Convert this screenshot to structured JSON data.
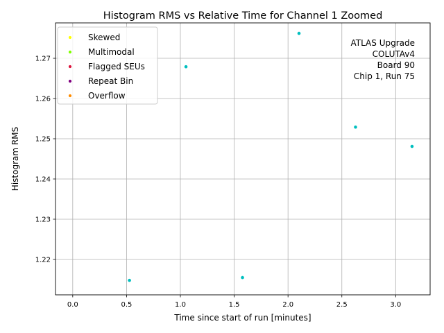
{
  "chart_data": {
    "type": "scatter",
    "title": "Histogram RMS vs Relative Time for Channel 1 Zoomed",
    "xlabel": "Time since start of run [minutes]",
    "ylabel": "Histogram RMS",
    "xlim": [
      -0.16,
      3.32
    ],
    "ylim": [
      1.2112,
      1.2788
    ],
    "x_ticks": [
      0.0,
      0.5,
      1.0,
      1.5,
      2.0,
      2.5,
      3.0
    ],
    "x_tick_labels": [
      "0.0",
      "0.5",
      "1.0",
      "1.5",
      "2.0",
      "2.5",
      "3.0"
    ],
    "y_ticks": [
      1.22,
      1.23,
      1.24,
      1.25,
      1.26,
      1.27
    ],
    "y_tick_labels": [
      "1.22",
      "1.23",
      "1.24",
      "1.25",
      "1.26",
      "1.27"
    ],
    "grid": true,
    "legend_position": "top-left",
    "legend": [
      {
        "label": "Skewed",
        "color": "#ffff00"
      },
      {
        "label": "Multimodal",
        "color": "#7fff00"
      },
      {
        "label": "Flagged SEUs",
        "color": "#dc143c"
      },
      {
        "label": "Repeat Bin",
        "color": "#800080"
      },
      {
        "label": "Overflow",
        "color": "#ff8c00"
      }
    ],
    "series": [
      {
        "color": "#00bfbf",
        "x": [
          0.527,
          1.052,
          1.577,
          2.102,
          2.627,
          3.152
        ],
        "y": [
          1.2148,
          1.2679,
          1.2155,
          1.2762,
          1.2529,
          1.2481
        ]
      }
    ],
    "annotation": [
      "ATLAS Upgrade",
      "COLUTAv4",
      "Board 90",
      "Chip 1, Run 75"
    ]
  }
}
